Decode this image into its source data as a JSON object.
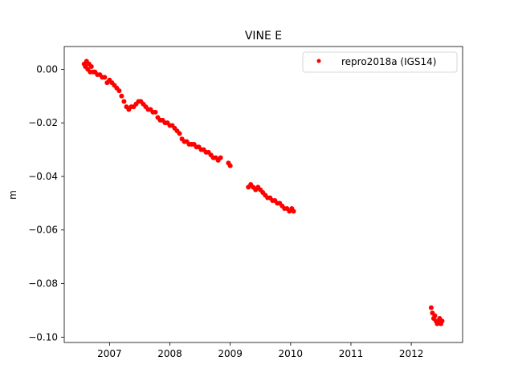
{
  "chart_data": {
    "type": "scatter",
    "title": "VINE E",
    "xlabel": "",
    "ylabel": "m",
    "xlim": [
      2006.25,
      2012.85
    ],
    "ylim": [
      -0.102,
      0.0085
    ],
    "xticks": [
      2007,
      2008,
      2009,
      2010,
      2011,
      2012
    ],
    "xtick_labels": [
      "2007",
      "2008",
      "2009",
      "2010",
      "2011",
      "2012"
    ],
    "yticks": [
      0.0,
      -0.02,
      -0.04,
      -0.06,
      -0.08,
      -0.1
    ],
    "ytick_labels": [
      "0.00",
      "−0.02",
      "−0.04",
      "−0.06",
      "−0.08",
      "−0.10"
    ],
    "grid": false,
    "legend_position": "top-right",
    "colors": {
      "series": "#ff0000",
      "axes": "#000000"
    },
    "series": [
      {
        "name": "repro2018a (IGS14)",
        "marker": "circle",
        "points": [
          [
            2006.58,
            0.002
          ],
          [
            2006.6,
            0.001
          ],
          [
            2006.62,
            0.003
          ],
          [
            2006.64,
            0.0
          ],
          [
            2006.66,
            0.002
          ],
          [
            2006.68,
            -0.001
          ],
          [
            2006.7,
            0.001
          ],
          [
            2006.73,
            -0.001
          ],
          [
            2006.76,
            -0.001
          ],
          [
            2006.8,
            -0.002
          ],
          [
            2006.84,
            -0.002
          ],
          [
            2006.88,
            -0.003
          ],
          [
            2006.92,
            -0.003
          ],
          [
            2006.96,
            -0.005
          ],
          [
            2007.0,
            -0.004
          ],
          [
            2007.04,
            -0.005
          ],
          [
            2007.08,
            -0.006
          ],
          [
            2007.12,
            -0.007
          ],
          [
            2007.16,
            -0.008
          ],
          [
            2007.2,
            -0.01
          ],
          [
            2007.24,
            -0.012
          ],
          [
            2007.28,
            -0.014
          ],
          [
            2007.32,
            -0.015
          ],
          [
            2007.36,
            -0.014
          ],
          [
            2007.4,
            -0.014
          ],
          [
            2007.44,
            -0.013
          ],
          [
            2007.48,
            -0.012
          ],
          [
            2007.52,
            -0.012
          ],
          [
            2007.56,
            -0.013
          ],
          [
            2007.6,
            -0.014
          ],
          [
            2007.64,
            -0.015
          ],
          [
            2007.68,
            -0.015
          ],
          [
            2007.72,
            -0.016
          ],
          [
            2007.76,
            -0.016
          ],
          [
            2007.8,
            -0.018
          ],
          [
            2007.84,
            -0.019
          ],
          [
            2007.88,
            -0.019
          ],
          [
            2007.92,
            -0.02
          ],
          [
            2007.96,
            -0.02
          ],
          [
            2008.0,
            -0.021
          ],
          [
            2008.04,
            -0.021
          ],
          [
            2008.08,
            -0.022
          ],
          [
            2008.12,
            -0.023
          ],
          [
            2008.16,
            -0.024
          ],
          [
            2008.2,
            -0.026
          ],
          [
            2008.24,
            -0.027
          ],
          [
            2008.28,
            -0.027
          ],
          [
            2008.32,
            -0.028
          ],
          [
            2008.36,
            -0.028
          ],
          [
            2008.4,
            -0.028
          ],
          [
            2008.44,
            -0.029
          ],
          [
            2008.48,
            -0.029
          ],
          [
            2008.52,
            -0.03
          ],
          [
            2008.56,
            -0.03
          ],
          [
            2008.6,
            -0.031
          ],
          [
            2008.64,
            -0.031
          ],
          [
            2008.68,
            -0.032
          ],
          [
            2008.72,
            -0.033
          ],
          [
            2008.76,
            -0.033
          ],
          [
            2008.8,
            -0.034
          ],
          [
            2008.84,
            -0.033
          ],
          [
            2008.97,
            -0.035
          ],
          [
            2009.0,
            -0.036
          ],
          [
            2009.3,
            -0.044
          ],
          [
            2009.34,
            -0.043
          ],
          [
            2009.38,
            -0.044
          ],
          [
            2009.42,
            -0.045
          ],
          [
            2009.46,
            -0.044
          ],
          [
            2009.5,
            -0.045
          ],
          [
            2009.54,
            -0.046
          ],
          [
            2009.58,
            -0.047
          ],
          [
            2009.62,
            -0.048
          ],
          [
            2009.66,
            -0.048
          ],
          [
            2009.7,
            -0.049
          ],
          [
            2009.74,
            -0.049
          ],
          [
            2009.78,
            -0.05
          ],
          [
            2009.82,
            -0.05
          ],
          [
            2009.86,
            -0.051
          ],
          [
            2009.9,
            -0.052
          ],
          [
            2009.94,
            -0.052
          ],
          [
            2009.98,
            -0.053
          ],
          [
            2010.02,
            -0.052
          ],
          [
            2010.05,
            -0.053
          ],
          [
            2012.33,
            -0.089
          ],
          [
            2012.35,
            -0.091
          ],
          [
            2012.37,
            -0.093
          ],
          [
            2012.39,
            -0.092
          ],
          [
            2012.41,
            -0.094
          ],
          [
            2012.43,
            -0.095
          ],
          [
            2012.45,
            -0.094
          ],
          [
            2012.47,
            -0.093
          ],
          [
            2012.49,
            -0.095
          ],
          [
            2012.51,
            -0.094
          ]
        ]
      }
    ]
  }
}
